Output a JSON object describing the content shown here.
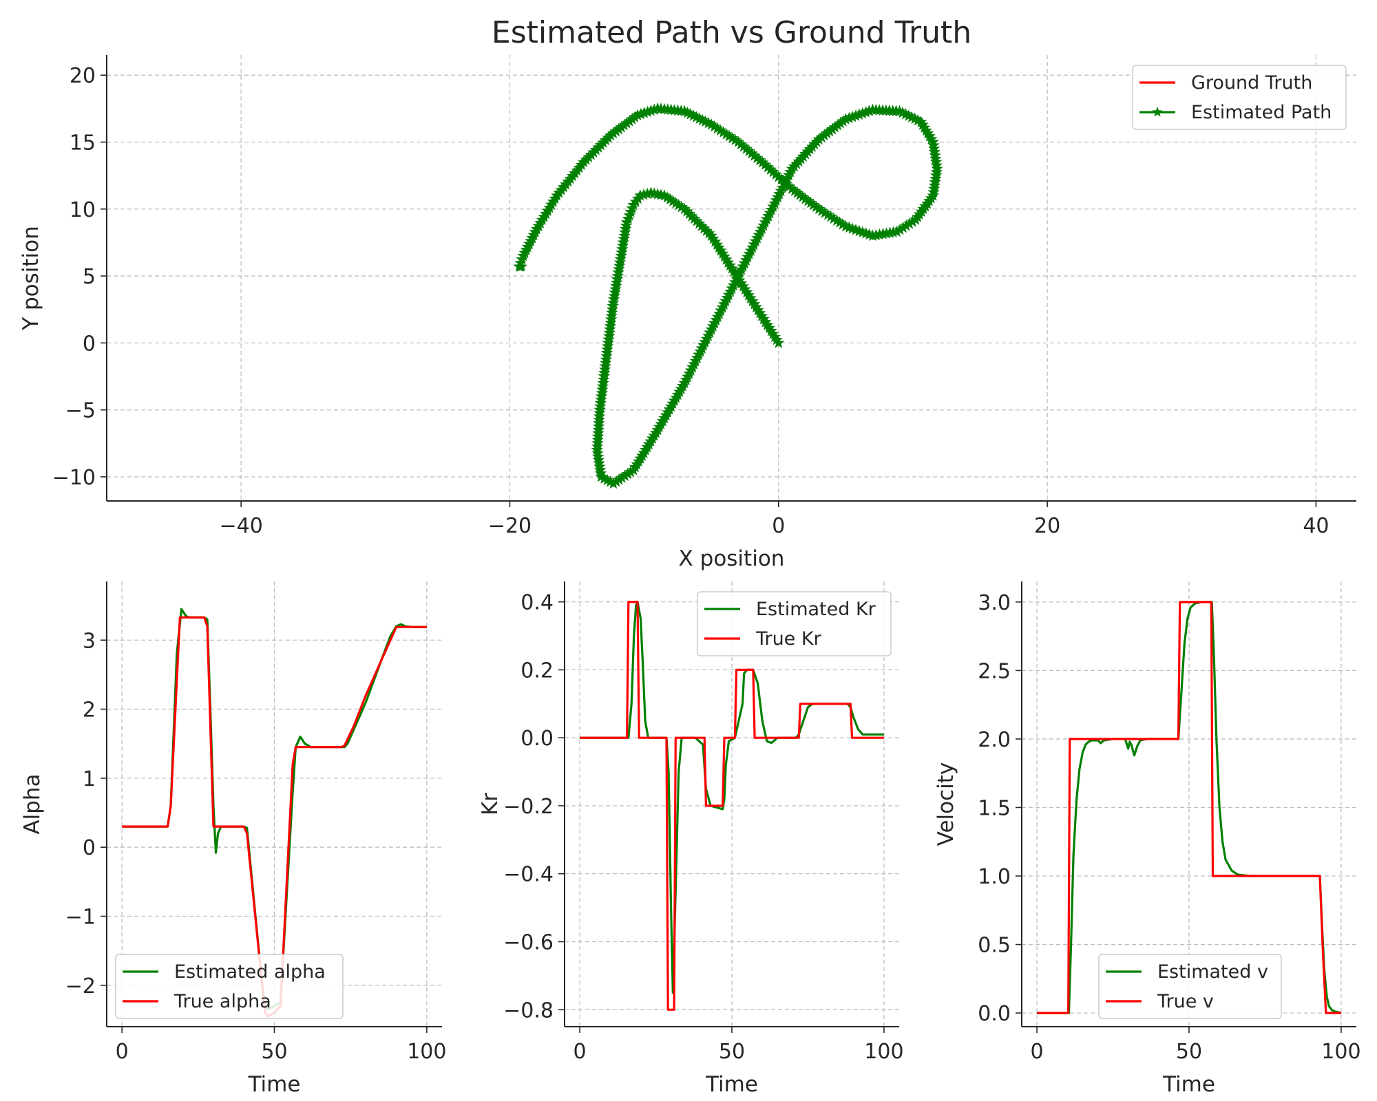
{
  "colors": {
    "ground_truth": "#ff0000",
    "estimated": "#008000"
  },
  "chart_data": [
    {
      "type": "line",
      "title": "Estimated Path vs Ground Truth",
      "xlabel": "X position",
      "ylabel": "Y position",
      "xlim": [
        -50,
        43
      ],
      "ylim": [
        -11.8,
        21.5
      ],
      "xticks": [
        -40,
        -20,
        0,
        20,
        40
      ],
      "xtick_labels": [
        "−40",
        "−20",
        "0",
        "20",
        "40"
      ],
      "yticks": [
        -10,
        -5,
        0,
        5,
        10,
        15,
        20
      ],
      "ytick_labels": [
        "−10",
        "−5",
        "0",
        "5",
        "10",
        "15",
        "20"
      ],
      "grid": true,
      "legend": "top-right",
      "series": [
        {
          "name": "Ground Truth",
          "color": "#ff0000",
          "x": [
            0,
            -2.5,
            -5,
            -7,
            -8.5,
            -9.5,
            -10.3,
            -10.8,
            -11.3,
            -11.8,
            -12.3,
            -12.8,
            -13.3,
            -13.5,
            -13.2,
            -12.3,
            -10.8,
            -9,
            -7,
            -5,
            -3,
            -1,
            1,
            3,
            5,
            7,
            9,
            10.6,
            11.5,
            11.8,
            11.5,
            10.2,
            8.8,
            7,
            5,
            3,
            1,
            -1,
            -3,
            -5,
            -7,
            -9,
            -10.5,
            -12.5,
            -14.5,
            -16.5,
            -18,
            -19,
            -19.3,
            -19.2,
            -19.1
          ],
          "y": [
            0,
            4,
            8,
            10,
            11,
            11.2,
            11,
            10.3,
            9,
            6,
            3,
            -1,
            -5,
            -8,
            -10,
            -10.5,
            -9.5,
            -6.5,
            -3,
            1,
            5,
            9,
            13,
            15.2,
            16.7,
            17.4,
            17.3,
            16.5,
            15,
            13,
            11,
            9.2,
            8.3,
            8,
            8.7,
            10,
            11.5,
            13.3,
            15,
            16.3,
            17.3,
            17.5,
            17,
            15.5,
            13.5,
            11,
            8.5,
            6.5,
            5.7,
            5.7,
            5.7
          ]
        },
        {
          "name": "Estimated Path",
          "color": "#008000",
          "marker": "star",
          "x": [
            0,
            -2.5,
            -5,
            -7,
            -8.5,
            -9.5,
            -10.3,
            -10.8,
            -11.3,
            -11.8,
            -12.3,
            -12.8,
            -13.3,
            -13.5,
            -13.2,
            -12.3,
            -10.8,
            -9,
            -7,
            -5,
            -3,
            -1,
            1,
            3,
            5,
            7,
            9,
            10.6,
            11.5,
            11.8,
            11.5,
            10.2,
            8.8,
            7,
            5,
            3,
            1,
            -1,
            -3,
            -5,
            -7,
            -9,
            -10.5,
            -12.5,
            -14.5,
            -16.5,
            -18,
            -19,
            -19.3,
            -19.2,
            -19.1
          ],
          "y": [
            0,
            4,
            8,
            10,
            11,
            11.2,
            11,
            10.3,
            9,
            6,
            3,
            -1,
            -5,
            -8,
            -10,
            -10.5,
            -9.5,
            -6.5,
            -3,
            1,
            5,
            9,
            13,
            15.2,
            16.7,
            17.4,
            17.3,
            16.5,
            15,
            13,
            11,
            9.2,
            8.3,
            8,
            8.7,
            10,
            11.5,
            13.3,
            15,
            16.3,
            17.3,
            17.5,
            17,
            15.5,
            13.5,
            11,
            8.5,
            6.5,
            5.7,
            5.7,
            5.7
          ]
        }
      ]
    },
    {
      "type": "line",
      "title": "",
      "xlabel": "Time",
      "ylabel": "Alpha",
      "xlim": [
        -5,
        105
      ],
      "ylim": [
        -2.6,
        3.85
      ],
      "xticks": [
        0,
        50,
        100
      ],
      "xtick_labels": [
        "0",
        "50",
        "100"
      ],
      "yticks": [
        -2,
        -1,
        0,
        1,
        2,
        3
      ],
      "ytick_labels": [
        "−2",
        "−1",
        "0",
        "1",
        "2",
        "3"
      ],
      "grid": true,
      "legend": "bottom-left",
      "series": [
        {
          "name": "Estimated alpha",
          "color": "#008000",
          "x": [
            0,
            15,
            16,
            18,
            19.5,
            21,
            22,
            27,
            28,
            29,
            30,
            30.8,
            31.5,
            32.5,
            34,
            40,
            41,
            46,
            47,
            48,
            50,
            52,
            56,
            57,
            58.5,
            60,
            62,
            72,
            73,
            74,
            76,
            80,
            85,
            88,
            90,
            91.5,
            93,
            95,
            100
          ],
          "y": [
            0.3,
            0.3,
            0.6,
            2.8,
            3.45,
            3.35,
            3.33,
            3.33,
            3.3,
            2.0,
            0.6,
            -0.08,
            0.2,
            0.3,
            0.3,
            0.3,
            0.28,
            -2.0,
            -2.3,
            -2.35,
            -2.3,
            -2.25,
            0.8,
            1.45,
            1.6,
            1.5,
            1.45,
            1.45,
            1.45,
            1.5,
            1.7,
            2.1,
            2.7,
            3.05,
            3.2,
            3.23,
            3.2,
            3.19,
            3.19
          ]
        },
        {
          "name": "True alpha",
          "color": "#ff0000",
          "x": [
            0,
            15,
            16,
            19,
            27,
            28,
            30,
            40,
            41,
            46,
            47,
            48,
            50,
            52,
            56,
            57,
            72,
            73,
            76,
            80,
            85,
            90,
            100
          ],
          "y": [
            0.3,
            0.3,
            0.6,
            3.33,
            3.33,
            3.2,
            0.3,
            0.3,
            0.2,
            -2.0,
            -2.4,
            -2.45,
            -2.4,
            -2.3,
            1.2,
            1.45,
            1.45,
            1.47,
            1.75,
            2.2,
            2.7,
            3.19,
            3.19
          ]
        }
      ]
    },
    {
      "type": "line",
      "title": "",
      "xlabel": "Time",
      "ylabel": "Kr",
      "xlim": [
        -5,
        105
      ],
      "ylim": [
        -0.85,
        0.46
      ],
      "xticks": [
        0,
        50,
        100
      ],
      "xtick_labels": [
        "0",
        "50",
        "100"
      ],
      "yticks": [
        -0.8,
        -0.6,
        -0.4,
        -0.2,
        0.0,
        0.2,
        0.4
      ],
      "ytick_labels": [
        "−0.8",
        "−0.6",
        "−0.4",
        "−0.2",
        "0.0",
        "0.2",
        "0.4"
      ],
      "grid": true,
      "legend": "top-right",
      "series": [
        {
          "name": "Estimated Kr",
          "color": "#008000",
          "x": [
            0,
            16,
            17,
            17.8,
            18.5,
            19,
            20,
            20.8,
            21.5,
            22.5,
            28.5,
            29.2,
            30,
            30.6,
            31.5,
            32.5,
            33.5,
            38,
            40.5,
            41.5,
            43,
            47,
            47.5,
            48,
            49,
            51,
            53.5,
            54,
            55,
            57,
            58.5,
            60,
            61.5,
            63,
            65,
            71,
            72,
            73.5,
            75,
            76.5,
            78,
            88,
            89,
            90,
            91.5,
            93,
            100
          ],
          "y": [
            0,
            0,
            0.1,
            0.3,
            0.39,
            0.4,
            0.35,
            0.2,
            0.05,
            0,
            0,
            -0.1,
            -0.5,
            -0.75,
            -0.45,
            -0.1,
            0,
            0,
            -0.02,
            -0.15,
            -0.2,
            -0.21,
            -0.18,
            -0.08,
            -0.01,
            0,
            0.1,
            0.19,
            0.2,
            0.2,
            0.16,
            0.05,
            -0.01,
            -0.015,
            0,
            0,
            0.01,
            0.05,
            0.09,
            0.1,
            0.1,
            0.1,
            0.09,
            0.06,
            0.025,
            0.01,
            0.01
          ]
        },
        {
          "name": "True Kr",
          "color": "#ff0000",
          "x": [
            0,
            15.5,
            16,
            19,
            19.5,
            28.5,
            29,
            31,
            31.5,
            41,
            41.5,
            47,
            47.5,
            51,
            51.5,
            57,
            57.5,
            72,
            72.5,
            89,
            89.5,
            100
          ],
          "y": [
            0,
            0,
            0.4,
            0.4,
            0,
            0,
            -0.8,
            -0.8,
            0,
            0,
            -0.2,
            -0.2,
            0,
            0,
            0.2,
            0.2,
            0,
            0,
            0.1,
            0.1,
            0,
            0
          ]
        }
      ]
    },
    {
      "type": "line",
      "title": "",
      "xlabel": "Time",
      "ylabel": "Velocity",
      "xlim": [
        -5,
        105
      ],
      "ylim": [
        -0.1,
        3.15
      ],
      "xticks": [
        0,
        50,
        100
      ],
      "xtick_labels": [
        "0",
        "50",
        "100"
      ],
      "yticks": [
        0.0,
        0.5,
        1.0,
        1.5,
        2.0,
        2.5,
        3.0
      ],
      "ytick_labels": [
        "0.0",
        "0.5",
        "1.0",
        "1.5",
        "2.0",
        "2.5",
        "3.0"
      ],
      "grid": true,
      "legend": "bottom-center",
      "series": [
        {
          "name": "Estimated v",
          "color": "#008000",
          "x": [
            0,
            10.5,
            11.2,
            12,
            13,
            14,
            15,
            16,
            17,
            18,
            20,
            21,
            22,
            25,
            29,
            30,
            30.5,
            31,
            32,
            33,
            34,
            36,
            46.5,
            47.5,
            48.5,
            49.5,
            50.5,
            52,
            54,
            57.5,
            58.2,
            59,
            60,
            61,
            62,
            64,
            66,
            70,
            93,
            93.8,
            94.5,
            95.3,
            96,
            97,
            98,
            100
          ],
          "y": [
            0,
            0,
            0.5,
            1.15,
            1.55,
            1.78,
            1.9,
            1.96,
            1.98,
            1.99,
            1.99,
            1.97,
            1.99,
            2.0,
            2.0,
            1.93,
            1.98,
            1.96,
            1.88,
            1.95,
            1.99,
            2.0,
            2.0,
            2.35,
            2.7,
            2.88,
            2.96,
            2.99,
            3.0,
            3.0,
            2.6,
            2.0,
            1.5,
            1.25,
            1.12,
            1.04,
            1.01,
            1.0,
            1.0,
            0.6,
            0.3,
            0.12,
            0.05,
            0.02,
            0.01,
            0.0
          ]
        },
        {
          "name": "True v",
          "color": "#ff0000",
          "x": [
            0,
            10.3,
            10.8,
            46.5,
            47.0,
            57.3,
            57.8,
            93.0,
            94.0,
            95.0,
            100
          ],
          "y": [
            0,
            0,
            2.0,
            2.0,
            3.0,
            3.0,
            1.0,
            1.0,
            0.45,
            0.0,
            0.0
          ]
        }
      ]
    }
  ]
}
